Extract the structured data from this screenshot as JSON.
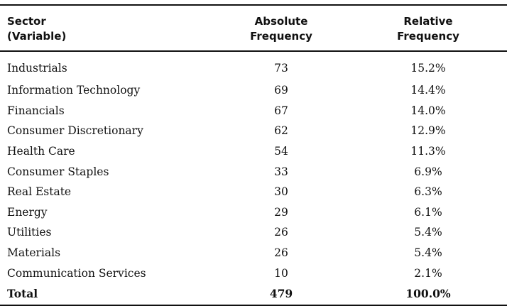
{
  "table": {
    "headers": {
      "sector": [
        "Sector",
        "(Variable)"
      ],
      "absolute": [
        "Absolute",
        "Frequency"
      ],
      "relative": [
        "Relative",
        "Frequency"
      ]
    },
    "rows": [
      {
        "sector": "Industrials",
        "absolute": "73",
        "relative": "15.2%"
      },
      {
        "sector": "Information Technology",
        "absolute": "69",
        "relative": "14.4%"
      },
      {
        "sector": "Financials",
        "absolute": "67",
        "relative": "14.0%"
      },
      {
        "sector": "Consumer Discretionary",
        "absolute": "62",
        "relative": "12.9%"
      },
      {
        "sector": "Health Care",
        "absolute": "54",
        "relative": "11.3%"
      },
      {
        "sector": "Consumer Staples",
        "absolute": "33",
        "relative": "6.9%"
      },
      {
        "sector": "Real Estate",
        "absolute": "30",
        "relative": "6.3%"
      },
      {
        "sector": "Energy",
        "absolute": "29",
        "relative": "6.1%"
      },
      {
        "sector": "Utilities",
        "absolute": "26",
        "relative": "5.4%"
      },
      {
        "sector": "Materials",
        "absolute": "26",
        "relative": "5.4%"
      },
      {
        "sector": "Communication Services",
        "absolute": "10",
        "relative": "2.1%"
      }
    ],
    "total": {
      "sector": "Total",
      "absolute": "479",
      "relative": "100.0%"
    }
  }
}
